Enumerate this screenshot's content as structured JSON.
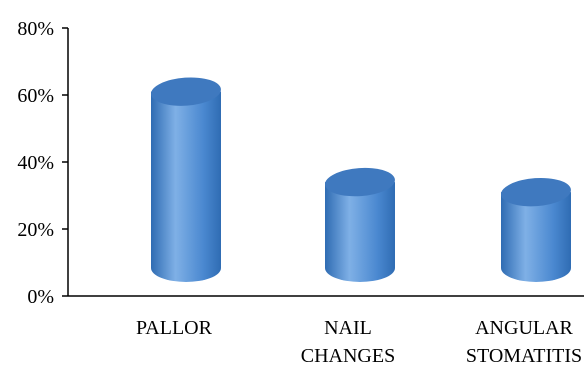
{
  "chart_data": {
    "type": "bar",
    "categories": [
      [
        "PALLOR"
      ],
      [
        "NAIL",
        "CHANGES"
      ],
      [
        "ANGULAR",
        "STOMATITIS"
      ]
    ],
    "values": [
      61,
      34,
      31
    ],
    "ylim": [
      0,
      80
    ],
    "yticks": [
      "0%",
      "20%",
      "40%",
      "60%",
      "80%"
    ],
    "ytick_values": [
      0,
      20,
      40,
      60,
      80
    ],
    "grid": false,
    "legend": "none",
    "colors": {
      "bar_body": "#4a88d0",
      "bar_light": "#7fb0e6",
      "bar_dark": "#2f6cb3",
      "bar_top": "#3f79bf"
    }
  }
}
